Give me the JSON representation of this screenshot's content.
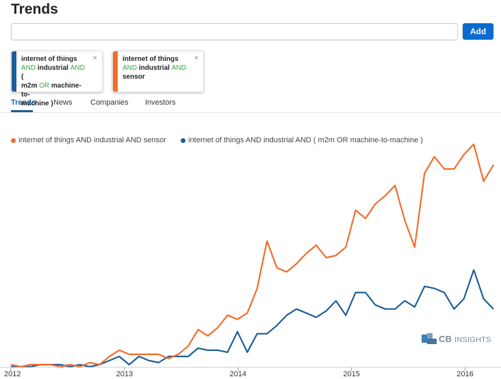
{
  "header": {
    "title": "Trends"
  },
  "search": {
    "value": "",
    "placeholder": "",
    "add_label": "Add"
  },
  "chips": [
    {
      "color": "#1a5e98",
      "lines": [
        [
          {
            "t": "internet of things",
            "op": false
          }
        ],
        [
          {
            "t": "AND",
            "op": true
          },
          {
            "t": " industrial ",
            "op": false
          },
          {
            "t": "AND",
            "op": true
          },
          {
            "t": " (",
            "op": false
          }
        ],
        [
          {
            "t": "m2m ",
            "op": false
          },
          {
            "t": "OR",
            "op": true
          },
          {
            "t": " machine-to-",
            "op": false
          }
        ],
        [
          {
            "t": "machine )",
            "op": false
          }
        ]
      ],
      "close": "×"
    },
    {
      "color": "#f26b2a",
      "lines": [
        [
          {
            "t": "internet of things",
            "op": false
          }
        ],
        [
          {
            "t": "AND",
            "op": true
          },
          {
            "t": " industrial ",
            "op": false
          },
          {
            "t": "AND",
            "op": true
          }
        ],
        [
          {
            "t": "sensor",
            "op": false
          }
        ]
      ],
      "close": "×"
    }
  ],
  "tabs": [
    {
      "label": "Trends",
      "active": true
    },
    {
      "label": "News",
      "active": false
    },
    {
      "label": "Companies",
      "active": false
    },
    {
      "label": "Investors",
      "active": false
    }
  ],
  "watermark": {
    "brand": "CB",
    "text": "INSIGHTS"
  },
  "chart_data": {
    "type": "line",
    "x_tick_labels": [
      "2012",
      "2013",
      "2014",
      "2015",
      "2016"
    ],
    "x_range": [
      2012.0,
      2016.25
    ],
    "ylim": [
      0,
      100
    ],
    "grid": false,
    "legend_position": "top-left",
    "series": [
      {
        "name": "internet of things AND industrial AND sensor",
        "color": "#f26b2a",
        "values": [
          1,
          0,
          1,
          1,
          1,
          0,
          1,
          0,
          2,
          1,
          5,
          8,
          6,
          6,
          6,
          6,
          4,
          6,
          10,
          18,
          15,
          19,
          25,
          23,
          26,
          38,
          61,
          48,
          46,
          50,
          55,
          59,
          53,
          54,
          58,
          76,
          72,
          79,
          83,
          88,
          71,
          58,
          94,
          102,
          96,
          96,
          103,
          108,
          90,
          98
        ]
      },
      {
        "name": "internet of things AND industrial AND ( m2m OR machine-to-machine )",
        "color": "#1a5e98",
        "values": [
          0,
          0,
          0,
          1,
          1,
          1,
          0,
          1,
          0,
          1,
          3,
          5,
          1,
          5,
          3,
          2,
          5,
          5,
          5,
          9,
          8,
          8,
          7,
          17,
          7,
          16,
          16,
          20,
          25,
          28,
          26,
          24,
          27,
          32,
          25,
          36,
          36,
          30,
          28,
          28,
          32,
          29,
          39,
          38,
          36,
          28,
          33,
          47,
          33,
          28
        ]
      }
    ]
  }
}
